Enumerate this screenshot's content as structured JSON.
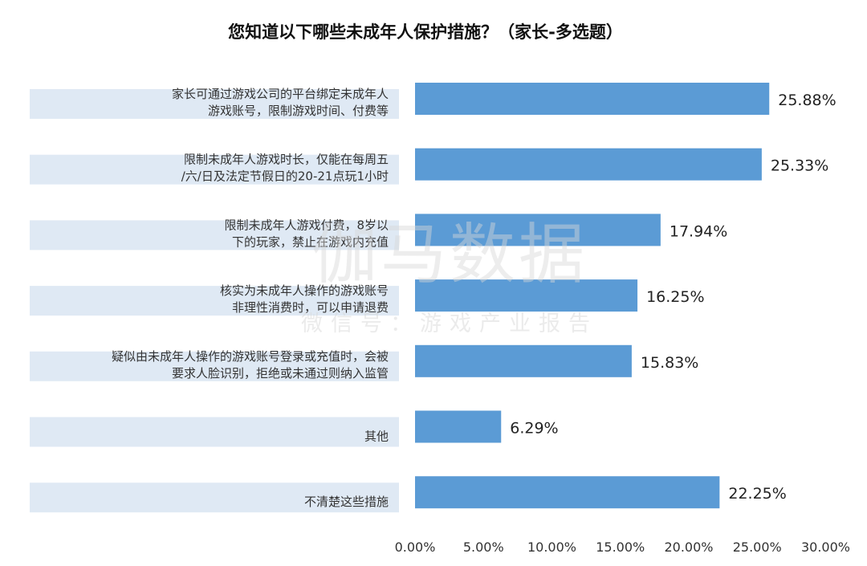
{
  "chart_data": {
    "type": "bar",
    "orientation": "horizontal",
    "title": "您知道以下哪些未成年人保护措施？（家长-多选题）",
    "categories": [
      [
        "家长可通过游戏公司的平台绑定未成年人",
        "游戏账号，限制游戏时间、付费等"
      ],
      [
        "限制未成年人游戏时长，仅能在每周五",
        "/六/日及法定节假日的20-21点玩1小时"
      ],
      [
        "限制未成年人游戏付费，8岁以",
        "下的玩家，禁止在游戏内充值"
      ],
      [
        "核实为未成年人操作的游戏账号",
        "非理性消费时，可以申请退费"
      ],
      [
        "疑似由未成年人操作的游戏账号登录或充值时，会被",
        "要求人脸识别，拒绝或未通过则纳入监管"
      ],
      [
        "其他"
      ],
      [
        "不清楚这些措施"
      ]
    ],
    "values": [
      25.88,
      25.33,
      17.94,
      16.25,
      15.83,
      6.29,
      22.25
    ],
    "value_labels": [
      "25.88%",
      "25.33%",
      "17.94%",
      "16.25%",
      "15.83%",
      "6.29%",
      "22.25%"
    ],
    "xlim": [
      0,
      30
    ],
    "x_ticks": [
      0,
      5,
      10,
      15,
      20,
      25,
      30
    ],
    "x_tick_labels": [
      "0.00%",
      "5.00%",
      "10.00%",
      "15.00%",
      "20.00%",
      "25.00%",
      "30.00%"
    ],
    "bar_color": "#5b9bd5",
    "label_band_color": "#dfe9f4",
    "grid": false,
    "legend": "none"
  },
  "watermark": {
    "main": "伽马数据",
    "sub": "微信号：游戏产业报告"
  }
}
